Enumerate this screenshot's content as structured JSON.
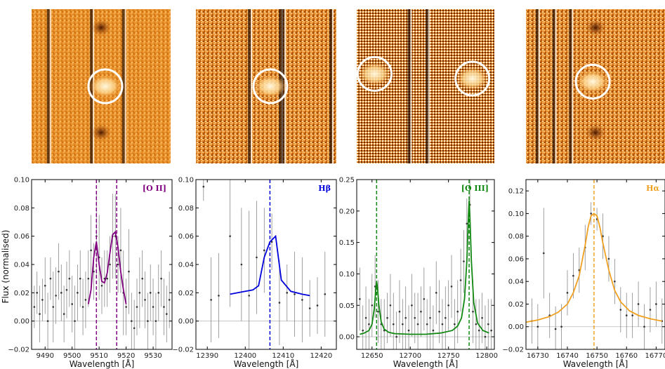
{
  "ylabel": "Flux (normalised)",
  "xlabel": "Wavelength [Å]",
  "thumbnails": [
    {
      "circles": [
        [
          0.53,
          0.5
        ]
      ],
      "lines": [
        0.12,
        0.43,
        0.66
      ]
    },
    {
      "circles": [
        [
          0.53,
          0.5
        ]
      ],
      "lines": [
        0.38,
        0.6,
        0.62,
        0.96
      ]
    },
    {
      "circles": [
        [
          0.13,
          0.42
        ],
        [
          0.84,
          0.45
        ]
      ],
      "lines": [
        0.38,
        0.51
      ]
    },
    {
      "circles": [
        [
          0.48,
          0.47
        ]
      ],
      "lines": [
        0.08,
        0.2,
        0.32
      ]
    }
  ],
  "chart_data": [
    {
      "type": "line",
      "label": "[O II]",
      "color": "#800080",
      "xlim": [
        9485,
        9537
      ],
      "ylim": [
        -0.02,
        0.1
      ],
      "xticks": [
        9490,
        9500,
        9510,
        9520,
        9530
      ],
      "yticks": [
        -0.02,
        0.0,
        0.02,
        0.04,
        0.06,
        0.08,
        0.1
      ],
      "xtick_labels": [
        "9490",
        "9500",
        "9510",
        "9520",
        "9530"
      ],
      "ytick_labels": [
        "−0.02",
        "0.00",
        "0.02",
        "0.04",
        "0.06",
        "0.08",
        "0.10"
      ],
      "vlines": [
        9509,
        9516.5
      ],
      "fit": {
        "x": [
          9506,
          9507,
          9508,
          9509,
          9510,
          9511,
          9512,
          9513,
          9514,
          9515,
          9516,
          9517,
          9518,
          9519,
          9520
        ],
        "y": [
          0.012,
          0.022,
          0.045,
          0.056,
          0.04,
          0.028,
          0.027,
          0.034,
          0.048,
          0.061,
          0.063,
          0.052,
          0.035,
          0.022,
          0.012
        ]
      },
      "points": {
        "x": [
          9486,
          9487,
          9488,
          9489,
          9490,
          9491,
          9492,
          9493,
          9494,
          9495,
          9496,
          9497,
          9498,
          9499,
          9500,
          9501,
          9502,
          9503,
          9504,
          9505,
          9506,
          9507,
          9508,
          9509,
          9510,
          9511,
          9512,
          9513,
          9514,
          9515,
          9516,
          9517,
          9518,
          9519,
          9520,
          9521,
          9522,
          9523,
          9524,
          9525,
          9526,
          9527,
          9528,
          9529,
          9530,
          9531,
          9532,
          9533,
          9534,
          9535,
          9536
        ],
        "y": [
          0.01,
          0.02,
          0.005,
          0.015,
          0.025,
          0.0,
          0.03,
          0.01,
          0.018,
          0.035,
          0.02,
          0.005,
          0.022,
          0.03,
          0.012,
          0.0,
          0.02,
          0.03,
          0.01,
          0.015,
          0.03,
          0.05,
          0.035,
          0.06,
          0.045,
          0.025,
          0.03,
          0.03,
          0.04,
          0.06,
          0.06,
          0.04,
          0.05,
          0.02,
          0.01,
          0.035,
          0.0,
          -0.005,
          0.01,
          0.02,
          0.03,
          0.015,
          0.0,
          0.02,
          0.01,
          0.0,
          0.02,
          0.03,
          0.01,
          0.005,
          0.015
        ],
        "err": [
          0.015,
          0.015,
          0.02,
          0.015,
          0.02,
          0.02,
          0.015,
          0.025,
          0.02,
          0.02,
          0.02,
          0.02,
          0.02,
          0.02,
          0.02,
          0.025,
          0.02,
          0.02,
          0.02,
          0.02,
          0.02,
          0.025,
          0.02,
          0.03,
          0.03,
          0.02,
          0.02,
          0.02,
          0.02,
          0.03,
          0.03,
          0.02,
          0.03,
          0.03,
          0.02,
          0.03,
          0.02,
          0.02,
          0.02,
          0.025,
          0.02,
          0.02,
          0.02,
          0.02,
          0.02,
          0.02,
          0.02,
          0.02,
          0.02,
          0.02,
          0.02
        ]
      }
    },
    {
      "type": "line",
      "label": "Hβ",
      "color": "#0000dd",
      "xlim": [
        12387,
        12424
      ],
      "ylim": [
        -0.02,
        0.1
      ],
      "xticks": [
        12390,
        12400,
        12410,
        12420
      ],
      "yticks": [
        -0.02,
        0.0,
        0.02,
        0.04,
        0.06,
        0.08,
        0.1
      ],
      "xtick_labels": [
        "12390",
        "12400",
        "12410",
        "12420"
      ],
      "ytick_labels": [
        "−0.02",
        "0.00",
        "0.02",
        "0.04",
        "0.06",
        "0.08",
        "0.10"
      ],
      "vlines": [
        12406.5
      ],
      "fit": {
        "x": [
          12396,
          12398,
          12400,
          12402,
          12403.5,
          12405,
          12406.5,
          12408,
          12409.5,
          12412,
          12415,
          12417
        ],
        "y": [
          0.019,
          0.02,
          0.021,
          0.022,
          0.025,
          0.045,
          0.056,
          0.06,
          0.029,
          0.021,
          0.019,
          0.018
        ]
      },
      "points": {
        "x": [
          12389,
          12391,
          12393,
          12396,
          12399,
          12401,
          12403,
          12405,
          12407,
          12409,
          12411,
          12413,
          12415,
          12417,
          12419,
          12421
        ],
        "y": [
          0.095,
          0.015,
          0.018,
          0.06,
          0.04,
          0.018,
          0.045,
          0.05,
          0.056,
          0.013,
          0.02,
          0.019,
          0.015,
          0.009,
          0.011,
          0.019
        ],
        "err": [
          0.01,
          0.03,
          0.03,
          0.05,
          0.04,
          0.06,
          0.04,
          0.03,
          0.02,
          0.03,
          0.02,
          0.03,
          0.03,
          0.02,
          0.02,
          0.03
        ]
      }
    },
    {
      "type": "line",
      "label": "[O III]",
      "color": "#118811",
      "xlim": [
        12630,
        12810
      ],
      "ylim": [
        -0.02,
        0.25
      ],
      "xticks": [
        12650,
        12700,
        12750,
        12800
      ],
      "yticks": [
        0.0,
        0.05,
        0.1,
        0.15,
        0.2,
        0.25
      ],
      "xtick_labels": [
        "12650",
        "12700",
        "12750",
        "12800"
      ],
      "ytick_labels": [
        "0.00",
        "0.05",
        "0.10",
        "0.15",
        "0.20",
        "0.25"
      ],
      "vlines": [
        12656,
        12777
      ],
      "fit": {
        "x": [
          12634,
          12640,
          12646,
          12650,
          12653,
          12655,
          12656,
          12657,
          12659,
          12662,
          12666,
          12672,
          12680,
          12700,
          12720,
          12740,
          12755,
          12762,
          12767,
          12771,
          12774,
          12776,
          12777,
          12778,
          12780,
          12783,
          12788,
          12795,
          12803
        ],
        "y": [
          0.004,
          0.006,
          0.01,
          0.02,
          0.045,
          0.075,
          0.088,
          0.08,
          0.05,
          0.024,
          0.012,
          0.007,
          0.005,
          0.004,
          0.004,
          0.006,
          0.01,
          0.017,
          0.03,
          0.06,
          0.12,
          0.19,
          0.217,
          0.19,
          0.12,
          0.055,
          0.022,
          0.01,
          0.006
        ]
      },
      "points": {
        "x": [
          12634,
          12638,
          12642,
          12646,
          12650,
          12654,
          12658,
          12662,
          12666,
          12670,
          12674,
          12678,
          12682,
          12686,
          12690,
          12694,
          12698,
          12702,
          12706,
          12710,
          12714,
          12718,
          12722,
          12726,
          12730,
          12734,
          12738,
          12742,
          12746,
          12750,
          12754,
          12758,
          12762,
          12766,
          12770,
          12774,
          12778,
          12782,
          12786,
          12790,
          12794,
          12798,
          12802,
          12806
        ],
        "y": [
          0.06,
          0.01,
          0.03,
          0.02,
          0.05,
          0.08,
          0.04,
          0.02,
          0.01,
          0.03,
          0.05,
          0.02,
          0.0,
          0.04,
          0.02,
          0.03,
          0.01,
          0.05,
          0.03,
          0.02,
          0.04,
          0.06,
          0.02,
          0.03,
          0.01,
          0.07,
          0.04,
          0.02,
          0.03,
          0.05,
          0.08,
          0.02,
          0.04,
          0.09,
          0.12,
          0.18,
          0.21,
          0.04,
          0.02,
          0.01,
          0.03,
          0.0,
          0.02,
          0.01
        ],
        "err": [
          0.05,
          0.04,
          0.05,
          0.04,
          0.05,
          0.05,
          0.05,
          0.04,
          0.05,
          0.04,
          0.05,
          0.05,
          0.04,
          0.05,
          0.04,
          0.05,
          0.04,
          0.05,
          0.04,
          0.05,
          0.04,
          0.05,
          0.04,
          0.05,
          0.04,
          0.05,
          0.05,
          0.04,
          0.05,
          0.04,
          0.05,
          0.04,
          0.05,
          0.05,
          0.05,
          0.04,
          0.04,
          0.05,
          0.04,
          0.05,
          0.04,
          0.05,
          0.04,
          0.05
        ]
      }
    },
    {
      "type": "line",
      "label": "Hα",
      "color": "#f0a020",
      "xlim": [
        16726,
        16773
      ],
      "ylim": [
        -0.02,
        0.13
      ],
      "xticks": [
        16730,
        16740,
        16750,
        16760,
        16770
      ],
      "yticks": [
        -0.02,
        0.0,
        0.02,
        0.04,
        0.06,
        0.08,
        0.1,
        0.12
      ],
      "xtick_labels": [
        "16730",
        "16740",
        "16750",
        "16760",
        "16770"
      ],
      "ytick_labels": [
        "−0.02",
        "0.00",
        "0.02",
        "0.04",
        "0.06",
        "0.08",
        "0.10",
        "0.12"
      ],
      "vlines": [
        16749
      ],
      "fit": {
        "x": [
          16726,
          16730,
          16734,
          16737,
          16740,
          16742,
          16744,
          16746,
          16747,
          16748,
          16749,
          16750,
          16751,
          16752,
          16754,
          16756,
          16758,
          16761,
          16764,
          16768,
          16772
        ],
        "y": [
          0.004,
          0.006,
          0.009,
          0.013,
          0.02,
          0.03,
          0.045,
          0.072,
          0.088,
          0.098,
          0.1,
          0.098,
          0.088,
          0.074,
          0.05,
          0.032,
          0.022,
          0.014,
          0.01,
          0.007,
          0.005
        ]
      },
      "points": {
        "x": [
          16728,
          16730,
          16732,
          16734,
          16736,
          16738,
          16740,
          16742,
          16744,
          16746,
          16748,
          16750,
          16752,
          16754,
          16756,
          16758,
          16760,
          16762,
          16764,
          16766,
          16768,
          16770,
          16772
        ],
        "y": [
          0.005,
          0.0,
          0.065,
          0.01,
          -0.002,
          0.0,
          0.03,
          0.045,
          0.05,
          0.07,
          0.1,
          0.095,
          0.08,
          0.06,
          0.04,
          0.015,
          0.01,
          0.01,
          0.02,
          0.0,
          0.015,
          0.02,
          0.005
        ],
        "err": [
          0.02,
          0.02,
          0.04,
          0.02,
          0.02,
          0.02,
          0.02,
          0.02,
          0.02,
          0.02,
          0.01,
          0.01,
          0.02,
          0.02,
          0.02,
          0.02,
          0.02,
          0.02,
          0.02,
          0.02,
          0.02,
          0.02,
          0.02
        ]
      }
    }
  ]
}
